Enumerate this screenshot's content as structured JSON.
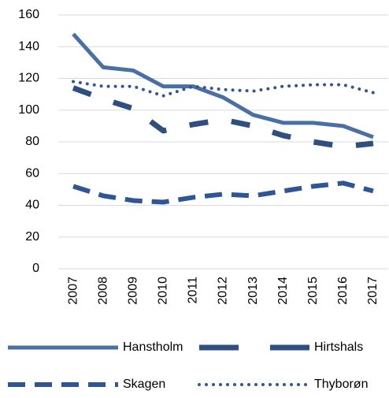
{
  "chart_data": {
    "type": "line",
    "categories": [
      "2007",
      "2008",
      "2009",
      "2010",
      "2011",
      "2012",
      "2013",
      "2014",
      "2015",
      "2016",
      "2017"
    ],
    "series": [
      {
        "name": "Hanstholm",
        "color": "#4a6fa5",
        "values": [
          148,
          127,
          125,
          115,
          115,
          108,
          97,
          92,
          92,
          90,
          83
        ]
      },
      {
        "name": "Hirtshals",
        "color": "#2e4f80",
        "values": [
          114,
          107,
          101,
          87,
          91,
          94,
          90,
          84,
          80,
          77,
          79
        ]
      },
      {
        "name": "Skagen",
        "color": "#2f5597",
        "values": [
          52,
          46,
          43,
          42,
          45,
          47,
          46,
          49,
          52,
          54,
          49
        ]
      },
      {
        "name": "Thyborøn",
        "color": "#2f5597",
        "values": [
          118,
          115,
          115,
          109,
          115,
          113,
          112,
          115,
          116,
          116,
          111
        ]
      }
    ],
    "ylim": [
      0,
      160
    ],
    "yticks": [
      0,
      20,
      40,
      60,
      80,
      100,
      120,
      140,
      160
    ],
    "grid": true
  }
}
